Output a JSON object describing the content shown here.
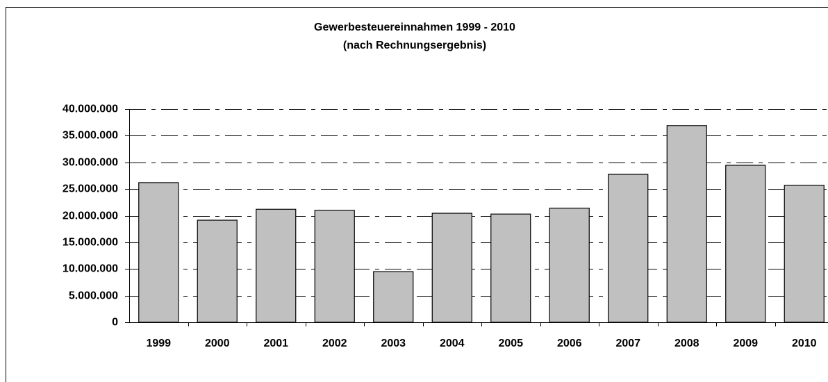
{
  "chart_data": {
    "type": "bar",
    "title": "Gewerbesteuereinnahmen 1999 - 2010",
    "subtitle": "(nach Rechnungsergebnis)",
    "categories": [
      "1999",
      "2000",
      "2001",
      "2002",
      "2003",
      "2004",
      "2005",
      "2006",
      "2007",
      "2008",
      "2009",
      "2010"
    ],
    "values": [
      26200000,
      19150000,
      21200000,
      21000000,
      9500000,
      20450000,
      20300000,
      21400000,
      27750000,
      36900000,
      29450000,
      25700000
    ],
    "color": "#c0c0c0",
    "ylim": [
      0,
      40000000
    ],
    "yticks": [
      0,
      {
        "value": 5000000,
        "label": "5.000.000"
      },
      {
        "value": 10000000,
        "label": "10.000.000"
      },
      {
        "value": 15000000,
        "label": "15.000.000"
      },
      {
        "value": 20000000,
        "label": "20.000.000"
      },
      {
        "value": 25000000,
        "label": "25.000.000"
      },
      {
        "value": 30000000,
        "label": "30.000.000"
      },
      {
        "value": 35000000,
        "label": "35.000.000"
      },
      {
        "value": 40000000,
        "label": "40.000.000"
      }
    ],
    "grid": true
  }
}
